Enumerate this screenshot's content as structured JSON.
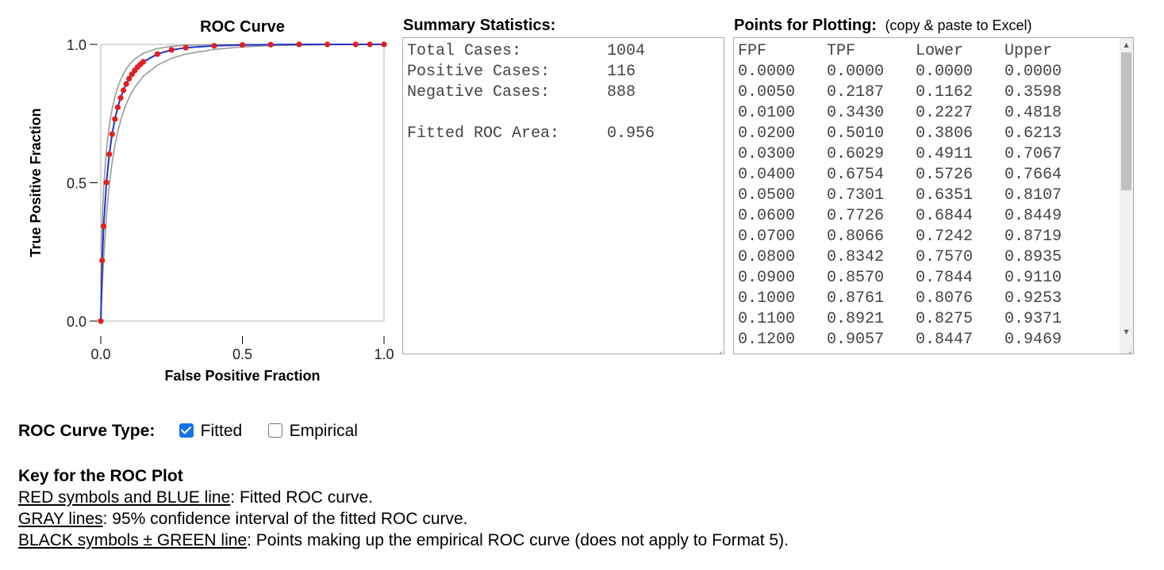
{
  "chart": {
    "title": "ROC Curve",
    "xlabel": "False Positive Fraction",
    "ylabel": "True Positive Fraction",
    "xticks": [
      "0.0",
      "0.5",
      "1.0"
    ],
    "yticks": [
      "1.0",
      "0.5",
      "0.0"
    ]
  },
  "chart_data": {
    "type": "line",
    "title": "ROC Curve",
    "xlabel": "False Positive Fraction",
    "ylabel": "True Positive Fraction",
    "xlim": [
      0,
      1
    ],
    "ylim": [
      0,
      1
    ],
    "grid": false,
    "colors": {
      "fitted_line": "#2233cc",
      "fitted_points": "#e02020",
      "ci_lines": "#999999"
    },
    "series": [
      {
        "x": [
          0.0,
          0.005,
          0.01,
          0.02,
          0.03,
          0.04,
          0.05,
          0.06,
          0.07,
          0.08,
          0.09,
          0.1,
          0.11,
          0.12,
          0.13,
          0.14,
          0.15,
          0.2,
          0.25,
          0.3,
          0.4,
          0.5,
          0.6,
          0.7,
          0.8,
          0.9,
          0.95,
          1.0
        ],
        "y": [
          0.0,
          0.2187,
          0.343,
          0.501,
          0.6029,
          0.6754,
          0.7301,
          0.7726,
          0.8066,
          0.8342,
          0.857,
          0.8761,
          0.8921,
          0.9057,
          0.918,
          0.928,
          0.937,
          0.965,
          0.98,
          0.988,
          0.995,
          0.998,
          0.999,
          1.0,
          1.0,
          1.0,
          1.0,
          1.0
        ]
      },
      {
        "x": [
          0.0,
          0.005,
          0.01,
          0.02,
          0.03,
          0.04,
          0.05,
          0.06,
          0.07,
          0.08,
          0.09,
          0.1,
          0.11,
          0.12,
          0.15,
          0.2,
          0.25,
          0.3,
          0.4,
          0.5,
          0.6,
          0.8,
          1.0
        ],
        "y": [
          0.0,
          0.1162,
          0.2227,
          0.3806,
          0.4911,
          0.5726,
          0.6351,
          0.6844,
          0.7242,
          0.757,
          0.7844,
          0.8076,
          0.8275,
          0.8447,
          0.885,
          0.925,
          0.95,
          0.965,
          0.982,
          0.991,
          0.996,
          0.999,
          1.0
        ]
      },
      {
        "x": [
          0.0,
          0.005,
          0.01,
          0.02,
          0.03,
          0.04,
          0.05,
          0.06,
          0.07,
          0.08,
          0.09,
          0.1,
          0.11,
          0.12,
          0.15,
          0.2,
          0.25,
          0.3,
          0.4,
          0.6,
          1.0
        ],
        "y": [
          0.0,
          0.3598,
          0.4818,
          0.6213,
          0.7067,
          0.7664,
          0.8107,
          0.8449,
          0.8719,
          0.8935,
          0.911,
          0.9253,
          0.9371,
          0.9469,
          0.968,
          0.985,
          0.993,
          0.997,
          0.999,
          1.0,
          1.0
        ]
      }
    ]
  },
  "summary": {
    "heading": "Summary Statistics:",
    "lines": [
      "Total Cases:         1004",
      "Positive Cases:      116",
      "Negative Cases:      888",
      "",
      "Fitted ROC Area:     0.956"
    ]
  },
  "points": {
    "heading": "Points for Plotting:",
    "subheading": "(copy & paste to Excel)",
    "columns": [
      "FPF",
      "TPF",
      "Lower",
      "Upper"
    ],
    "rows": [
      [
        "0.0000",
        "0.0000",
        "0.0000",
        "0.0000"
      ],
      [
        "0.0050",
        "0.2187",
        "0.1162",
        "0.3598"
      ],
      [
        "0.0100",
        "0.3430",
        "0.2227",
        "0.4818"
      ],
      [
        "0.0200",
        "0.5010",
        "0.3806",
        "0.6213"
      ],
      [
        "0.0300",
        "0.6029",
        "0.4911",
        "0.7067"
      ],
      [
        "0.0400",
        "0.6754",
        "0.5726",
        "0.7664"
      ],
      [
        "0.0500",
        "0.7301",
        "0.6351",
        "0.8107"
      ],
      [
        "0.0600",
        "0.7726",
        "0.6844",
        "0.8449"
      ],
      [
        "0.0700",
        "0.8066",
        "0.7242",
        "0.8719"
      ],
      [
        "0.0800",
        "0.8342",
        "0.7570",
        "0.8935"
      ],
      [
        "0.0900",
        "0.8570",
        "0.7844",
        "0.9110"
      ],
      [
        "0.1000",
        "0.8761",
        "0.8076",
        "0.9253"
      ],
      [
        "0.1100",
        "0.8921",
        "0.8275",
        "0.9371"
      ],
      [
        "0.1200",
        "0.9057",
        "0.8447",
        "0.9469"
      ]
    ]
  },
  "options": {
    "label": "ROC Curve Type:",
    "fitted_label": "Fitted",
    "fitted_checked": true,
    "empirical_label": "Empirical",
    "empirical_checked": false
  },
  "key": {
    "title": "Key for the ROC Plot",
    "items": [
      {
        "term": "RED symbols and BLUE line",
        "desc": ":  Fitted ROC curve."
      },
      {
        "term": "GRAY lines",
        "desc": ":  95% confidence interval of the fitted ROC curve."
      },
      {
        "term": "BLACK symbols ± GREEN line",
        "desc": ":  Points making up the empirical ROC curve (does not apply to Format 5)."
      }
    ]
  }
}
